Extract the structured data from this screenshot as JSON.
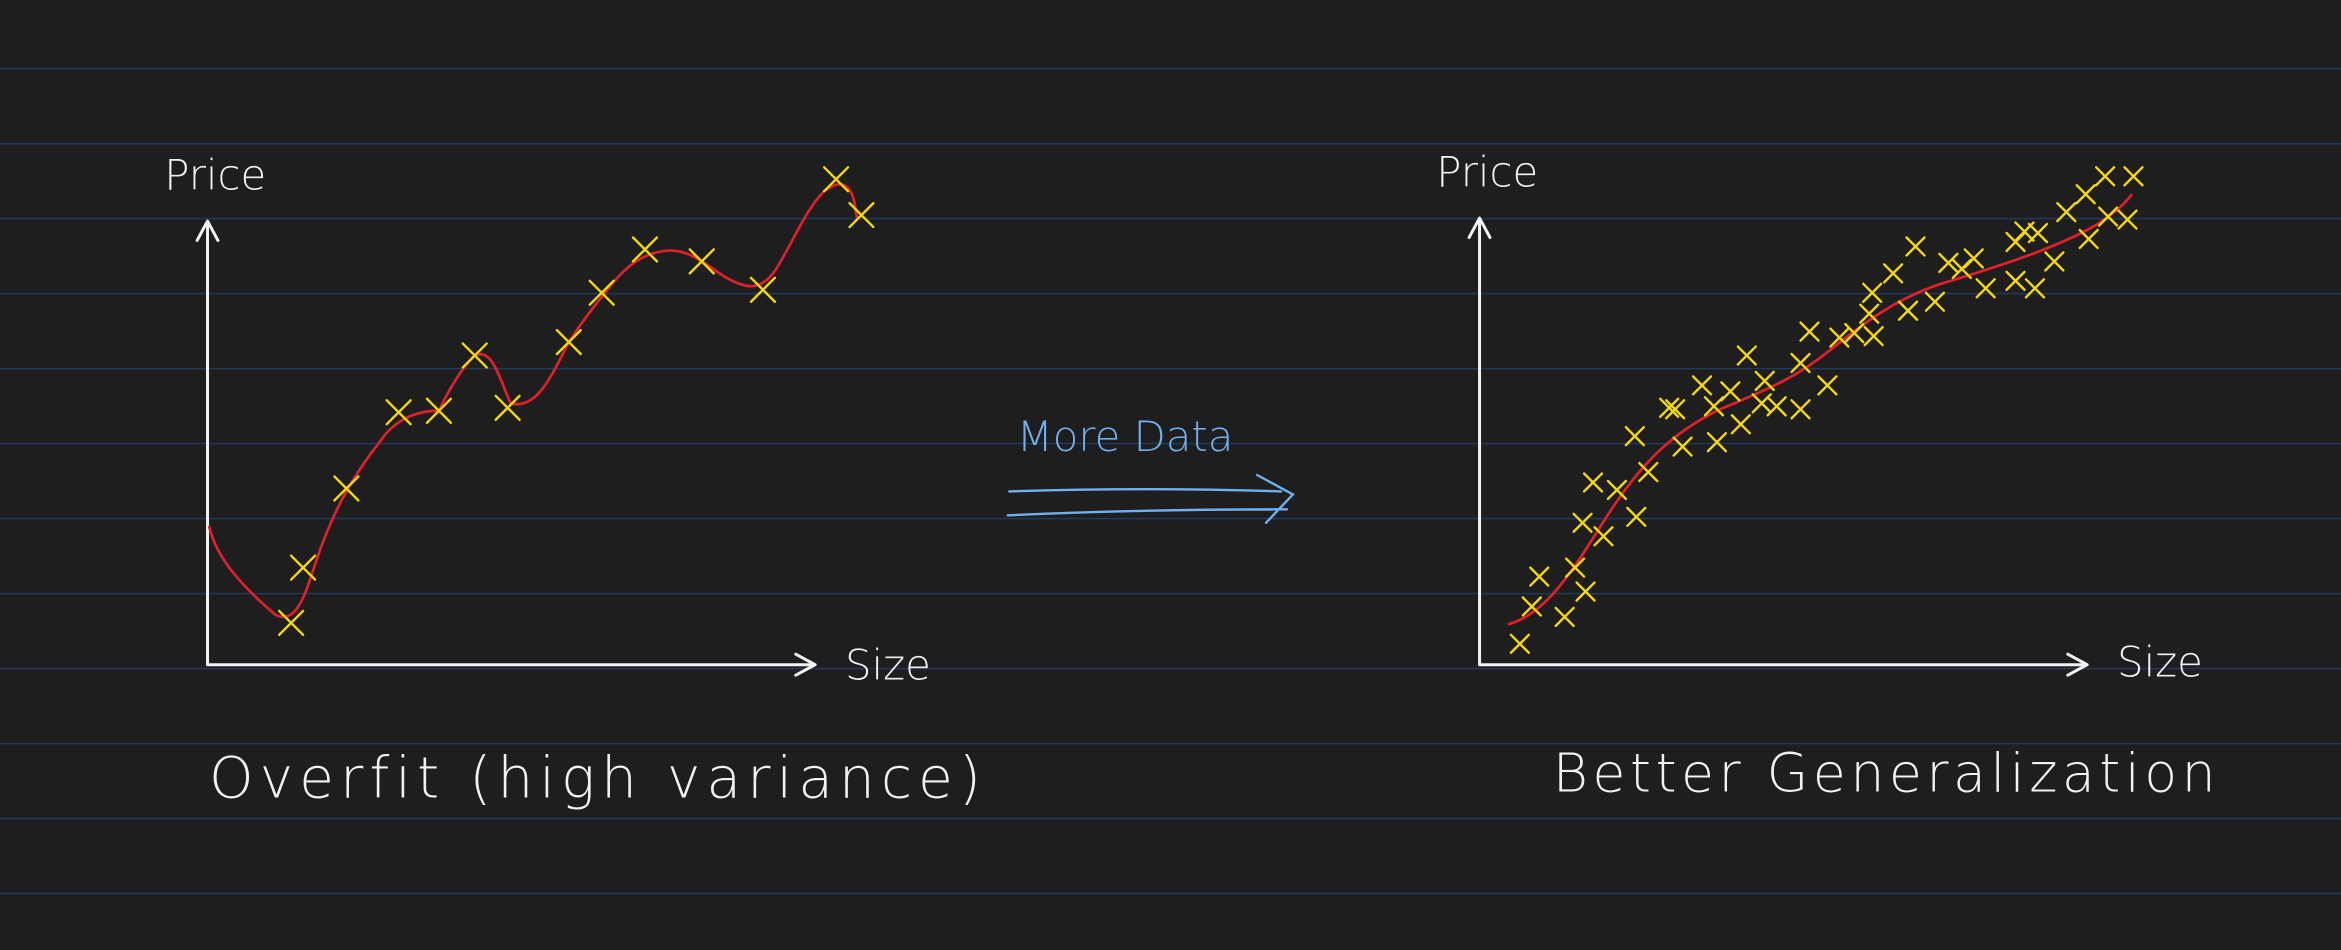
{
  "left": {
    "y_label": "Price",
    "x_label": "Size",
    "caption": "Overfit (high variance)"
  },
  "middle": {
    "label": "More Data"
  },
  "right": {
    "y_label": "Price",
    "x_label": "Size",
    "caption": "Better Generalization"
  }
}
